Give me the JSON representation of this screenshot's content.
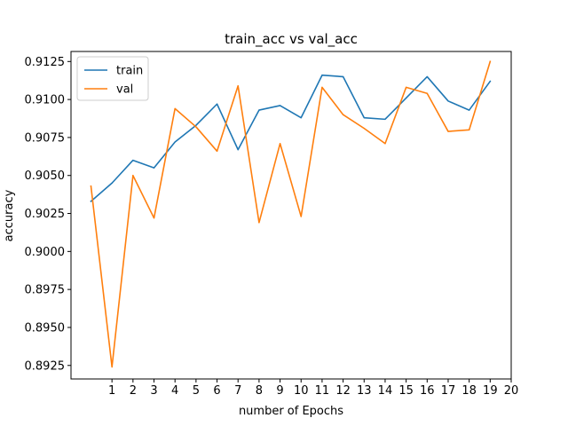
{
  "chart_data": {
    "type": "line",
    "title": "train_acc vs val_acc",
    "xlabel": "number of Epochs",
    "ylabel": "accuracy",
    "x": [
      0,
      1,
      2,
      3,
      4,
      5,
      6,
      7,
      8,
      9,
      10,
      11,
      12,
      13,
      14,
      15,
      16,
      17,
      18,
      19
    ],
    "xlim": [
      -0.95,
      20.0
    ],
    "ylim": [
      0.89161,
      0.91316
    ],
    "x_ticks": [
      1,
      2,
      3,
      4,
      5,
      6,
      7,
      8,
      9,
      10,
      11,
      12,
      13,
      14,
      15,
      16,
      17,
      18,
      19,
      20
    ],
    "x_tick_labels": [
      "1",
      "2",
      "3",
      "4",
      "5",
      "6",
      "7",
      "8",
      "9",
      "10",
      "11",
      "12",
      "13",
      "14",
      "15",
      "16",
      "17",
      "18",
      "19",
      "20"
    ],
    "y_ticks": [
      0.8925,
      0.895,
      0.8975,
      0.9,
      0.9025,
      0.905,
      0.9075,
      0.91,
      0.9125
    ],
    "y_tick_labels": [
      "0.8925",
      "0.8950",
      "0.8975",
      "0.9000",
      "0.9025",
      "0.9050",
      "0.9075",
      "0.9100",
      "0.9125"
    ],
    "grid": false,
    "legend_position": "top-left",
    "series": [
      {
        "name": "train",
        "color": "#1f77b4",
        "values": [
          0.9033,
          0.9045,
          0.906,
          0.9055,
          0.9072,
          0.9083,
          0.9097,
          0.9067,
          0.9093,
          0.9096,
          0.9088,
          0.9116,
          0.9115,
          0.9088,
          0.9087,
          0.9101,
          0.9115,
          0.9099,
          0.9093,
          0.9112
        ]
      },
      {
        "name": "val",
        "color": "#ff7f0e",
        "values": [
          0.9043,
          0.8924,
          0.905,
          0.9022,
          0.9094,
          0.9082,
          0.9066,
          0.9109,
          0.9019,
          0.9071,
          0.9023,
          0.9108,
          0.909,
          0.9081,
          0.9071,
          0.9108,
          0.9104,
          0.9079,
          0.908,
          0.9125
        ]
      }
    ]
  }
}
